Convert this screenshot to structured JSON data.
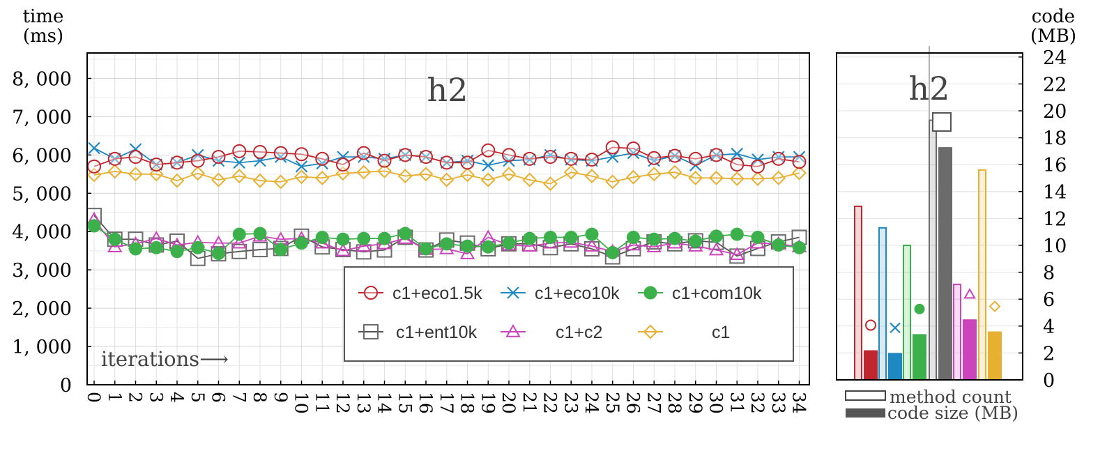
{
  "colors": {
    "c1+eco1.5k": "#c0262d",
    "c1+eco10k": "#1f88c2",
    "c1+com10k": "#3cb04a",
    "c1+ent10k": "#6b6b6b",
    "c1+c2": "#cc44bb",
    "c1": "#e8b030"
  },
  "chart_data": [
    {
      "type": "line",
      "title": "h2",
      "ylabel": "time\n(ms)",
      "ylabel_lines": [
        "time",
        "(ms)"
      ],
      "xlabel": "iterations⟶",
      "ylim": [
        0,
        8500
      ],
      "yticks": [
        0,
        1000,
        2000,
        3000,
        4000,
        5000,
        6000,
        7000,
        8000
      ],
      "ytick_labels": [
        "0",
        "1, 000",
        "2, 000",
        "3, 000",
        "4, 000",
        "5, 000",
        "6, 000",
        "7, 000",
        "8, 000"
      ],
      "x": [
        0,
        1,
        2,
        3,
        4,
        5,
        6,
        7,
        8,
        9,
        10,
        11,
        12,
        13,
        14,
        15,
        16,
        17,
        18,
        19,
        20,
        21,
        22,
        23,
        24,
        25,
        26,
        27,
        28,
        29,
        30,
        31,
        32,
        33,
        34
      ],
      "xtick_labels": [
        "0",
        "1",
        "2",
        "3",
        "4",
        "5",
        "6",
        "7",
        "8",
        "9",
        "10",
        "11",
        "12",
        "13",
        "14",
        "15",
        "16",
        "17",
        "18",
        "19",
        "20",
        "21",
        "22",
        "23",
        "24",
        "25",
        "26",
        "27",
        "28",
        "29",
        "30",
        "31",
        "32",
        "33",
        "34"
      ],
      "grid": true,
      "legend_placement": "bottom-right",
      "series": [
        {
          "name": "c1+eco1.5k",
          "marker": "circle",
          "values": [
            5700,
            5900,
            5950,
            5750,
            5800,
            5850,
            5950,
            6100,
            6080,
            6050,
            6020,
            5900,
            5750,
            6050,
            5850,
            6000,
            5950,
            5800,
            5800,
            6120,
            6000,
            5900,
            5950,
            5900,
            5880,
            6200,
            6170,
            5920,
            5980,
            5900,
            6000,
            5750,
            5700,
            5900,
            5820
          ]
        },
        {
          "name": "c1+eco10k",
          "marker": "x",
          "values": [
            6180,
            5900,
            6150,
            5750,
            5800,
            6000,
            5850,
            5800,
            5850,
            5950,
            5700,
            5780,
            5950,
            5950,
            5900,
            6000,
            5950,
            5800,
            5850,
            5730,
            5850,
            5880,
            6000,
            5880,
            5850,
            5950,
            6050,
            5850,
            5980,
            5730,
            6000,
            6030,
            5880,
            5950,
            5950
          ]
        },
        {
          "name": "c1+com10k",
          "marker": "filled-circle",
          "values": [
            4150,
            3800,
            3550,
            3580,
            3480,
            3580,
            3430,
            3930,
            3950,
            3530,
            3700,
            3850,
            3800,
            3820,
            3820,
            3950,
            3550,
            3680,
            3620,
            3600,
            3700,
            3820,
            3850,
            3850,
            3930,
            3450,
            3850,
            3800,
            3820,
            3750,
            3880,
            3930,
            3850,
            3650,
            3580
          ]
        },
        {
          "name": "c1+ent10k",
          "marker": "square",
          "values": [
            4420,
            3800,
            3800,
            3650,
            3750,
            3300,
            3420,
            3480,
            3530,
            3560,
            3880,
            3600,
            3530,
            3470,
            3520,
            3850,
            3520,
            3780,
            3700,
            3550,
            3680,
            3680,
            3580,
            3680,
            3550,
            3340,
            3550,
            3730,
            3680,
            3760,
            3720,
            3360,
            3560,
            3730,
            3850
          ]
        },
        {
          "name": "c1+c2",
          "marker": "triangle",
          "values": [
            4320,
            3600,
            3680,
            3820,
            3650,
            3720,
            3700,
            3700,
            3880,
            3800,
            3820,
            3700,
            3500,
            3620,
            3680,
            3820,
            3530,
            3550,
            3420,
            3850,
            3650,
            3620,
            3700,
            3720,
            3620,
            3480,
            3650,
            3600,
            3700,
            3620,
            3520,
            3400,
            3700,
            3680,
            3600
          ]
        },
        {
          "name": "c1",
          "marker": "diamond",
          "values": [
            5480,
            5570,
            5500,
            5500,
            5330,
            5520,
            5350,
            5450,
            5330,
            5300,
            5430,
            5400,
            5520,
            5550,
            5580,
            5450,
            5500,
            5350,
            5480,
            5350,
            5500,
            5350,
            5250,
            5550,
            5450,
            5300,
            5420,
            5500,
            5550,
            5400,
            5400,
            5380,
            5380,
            5400,
            5530
          ]
        }
      ]
    },
    {
      "type": "bar",
      "title": "h2",
      "ylabel": "code\n(MB)",
      "ylabel_lines": [
        "code",
        "(MB)"
      ],
      "ylim": [
        0,
        24
      ],
      "yticks": [
        0,
        2,
        4,
        6,
        8,
        10,
        12,
        14,
        16,
        18,
        20,
        22,
        24
      ],
      "grid": true,
      "legend_placement": "bottom",
      "legend": [
        "method count",
        "code size (MB)"
      ],
      "categories": [
        "c1+eco1.5k",
        "c1+eco10k",
        "c1+com10k",
        "c1+ent10k",
        "c1+c2",
        "c1"
      ],
      "series": [
        {
          "name": "method count",
          "style": "outline",
          "values": [
            12.9,
            11.3,
            10.0,
            19.3,
            7.1,
            15.6
          ]
        },
        {
          "name": "code size (MB)",
          "style": "filled",
          "values": [
            2.2,
            2.0,
            3.4,
            17.3,
            4.5,
            3.6
          ]
        }
      ]
    }
  ]
}
